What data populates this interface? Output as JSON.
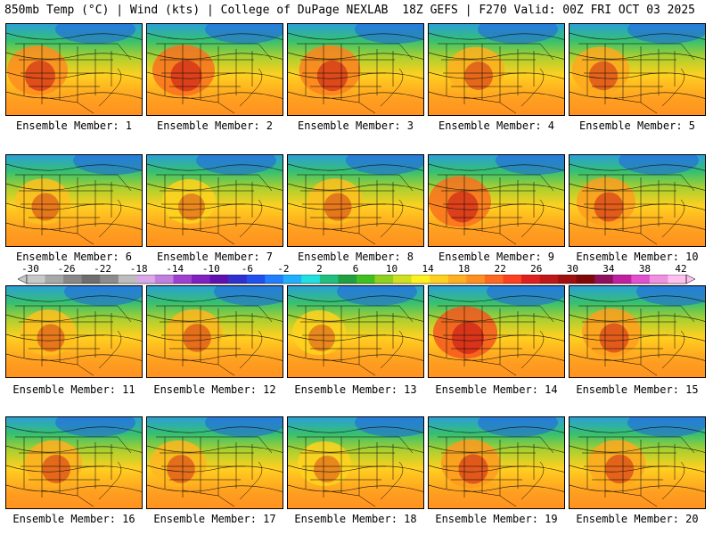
{
  "header": {
    "title_left": "850mb Temp (°C) | Wind (kts) | College of DuPage NEXLAB",
    "title_right": "18Z GEFS | F270 Valid: 00Z FRI OCT 03 2025"
  },
  "members": [
    {
      "label": "Ensemble Member: 1",
      "warmth": 0.7
    },
    {
      "label": "Ensemble Member: 2",
      "warmth": 0.75
    },
    {
      "label": "Ensemble Member: 3",
      "warmth": 0.72
    },
    {
      "label": "Ensemble Member: 4",
      "warmth": 0.6
    },
    {
      "label": "Ensemble Member: 5",
      "warmth": 0.62
    },
    {
      "label": "Ensemble Member: 6",
      "warmth": 0.55
    },
    {
      "label": "Ensemble Member: 7",
      "warmth": 0.5
    },
    {
      "label": "Ensemble Member: 8",
      "warmth": 0.55
    },
    {
      "label": "Ensemble Member: 9",
      "warmth": 0.75
    },
    {
      "label": "Ensemble Member: 10",
      "warmth": 0.65
    },
    {
      "label": "Ensemble Member: 11",
      "warmth": 0.55
    },
    {
      "label": "Ensemble Member: 12",
      "warmth": 0.58
    },
    {
      "label": "Ensemble Member: 13",
      "warmth": 0.5
    },
    {
      "label": "Ensemble Member: 14",
      "warmth": 0.8
    },
    {
      "label": "Ensemble Member: 15",
      "warmth": 0.65
    },
    {
      "label": "Ensemble Member: 16",
      "warmth": 0.6
    },
    {
      "label": "Ensemble Member: 17",
      "warmth": 0.58
    },
    {
      "label": "Ensemble Member: 18",
      "warmth": 0.5
    },
    {
      "label": "Ensemble Member: 19",
      "warmth": 0.66
    },
    {
      "label": "Ensemble Member: 20",
      "warmth": 0.62
    }
  ],
  "colorbar": {
    "ticks": [
      "-30",
      "-26",
      "-22",
      "-18",
      "-14",
      "-10",
      "-6",
      "-2",
      "2",
      "6",
      "10",
      "14",
      "18",
      "22",
      "26",
      "30",
      "34",
      "38",
      "42"
    ],
    "colors": [
      "#c8c8c8",
      "#a8a8a8",
      "#888888",
      "#6e6e6e",
      "#8c8c8c",
      "#bdbdbd",
      "#d8a8e8",
      "#c080e0",
      "#a040d0",
      "#8020c0",
      "#6010b0",
      "#3030d0",
      "#2050f0",
      "#2080ff",
      "#20b0ff",
      "#20e0e0",
      "#20c080",
      "#20a040",
      "#40c020",
      "#90d020",
      "#d0e020",
      "#fff020",
      "#ffd020",
      "#ffb020",
      "#ff9020",
      "#ff6820",
      "#ff4020",
      "#e02020",
      "#c01818",
      "#a01010",
      "#800808",
      "#901060",
      "#c020a0",
      "#e050d0",
      "#f090e0",
      "#ffc0f0"
    ]
  }
}
